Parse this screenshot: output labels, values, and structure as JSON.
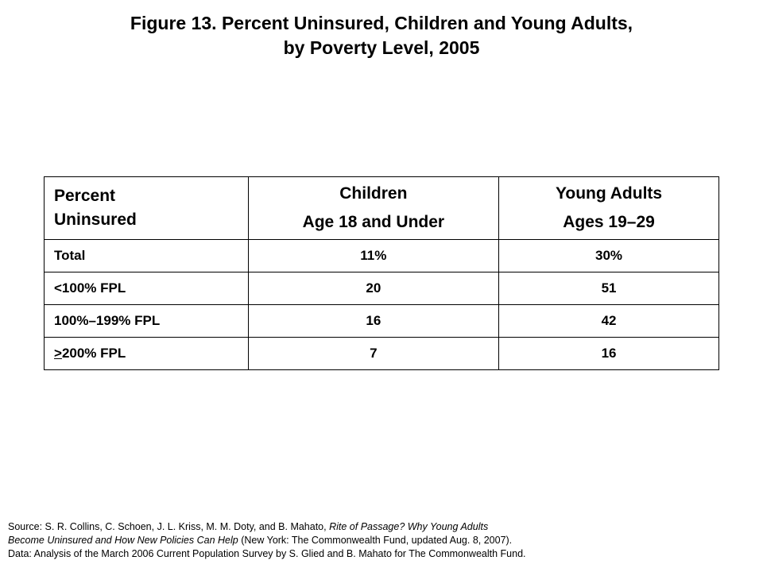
{
  "title": {
    "line1": "Figure 13. Percent Uninsured, Children and Young Adults,",
    "line2": "by Poverty Level, 2005"
  },
  "table": {
    "header": {
      "label_line1": "Percent",
      "label_line2": "Uninsured",
      "children_line1": "Children",
      "children_line2": "Age 18 and Under",
      "young_line1": "Young Adults",
      "young_line2": "Ages 19–29"
    },
    "rows": [
      {
        "label_prefix": "",
        "label": "Total",
        "children": "11%",
        "young": "30%"
      },
      {
        "label_prefix": "",
        "label": "<100% FPL",
        "children": "20",
        "young": "51"
      },
      {
        "label_prefix": "",
        "label": "100%–199% FPL",
        "children": "16",
        "young": "42"
      },
      {
        "label_prefix": ">",
        "label": "200% FPL",
        "children": "7",
        "young": "16"
      }
    ]
  },
  "source": {
    "prefix": "Source: S. R. Collins, C. Schoen, J. L. Kriss, M. M. Doty, and B. Mahato, ",
    "title_part1": "Rite of Passage? Why Young Adults",
    "title_part2": "Become Uninsured and How New Policies Can Help",
    "suffix": " (New York: The Commonwealth Fund, updated Aug. 8, 2007).",
    "data_line": "Data: Analysis of the March 2006 Current Population Survey by S. Glied and B. Mahato for The Commonwealth Fund."
  }
}
